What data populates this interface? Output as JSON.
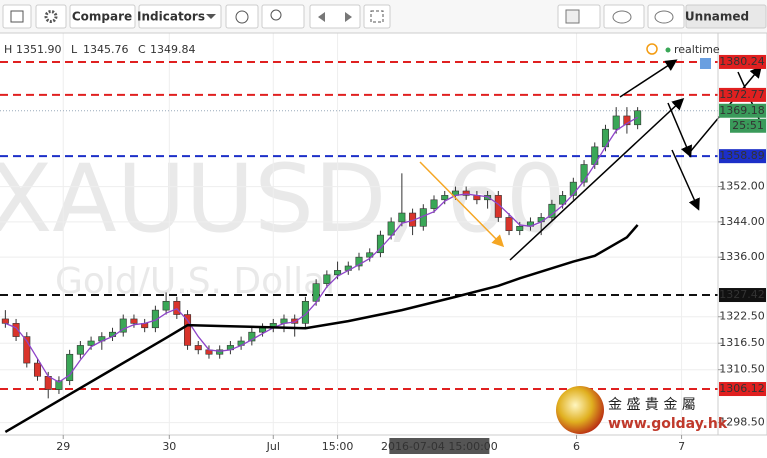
{
  "toolbar": {
    "compare": "Compare",
    "indicators": "Indicators",
    "layout_name": "Unnamed"
  },
  "header": {
    "items": [
      {
        "key": "H",
        "text": "1351.90"
      },
      {
        "key": "L",
        "text": "1345.76"
      },
      {
        "key": "C",
        "text": "1349.84"
      }
    ],
    "status": "realtime"
  },
  "logo": {
    "name": "金 盛 貴 金 屬",
    "url": "www.golday.hk"
  },
  "chart_data": {
    "type": "candlestick",
    "symbol": "XAUUSD, 60",
    "description": "Gold/U.S. Dollar",
    "up_color": "#3aa757",
    "down_color": "#d9342b",
    "xlim": [
      -0.5,
      66.5
    ],
    "xticks": [
      {
        "value": 5.4,
        "label": "29"
      },
      {
        "value": 15.3,
        "label": "30"
      },
      {
        "value": 25,
        "label": "Jul"
      },
      {
        "value": 31,
        "label": "15:00"
      },
      {
        "value": 53.3,
        "label": "6"
      },
      {
        "value": 63.1,
        "label": "7"
      }
    ],
    "crosshair": {
      "value": 40.5,
      "label": "2016-07-04 15:00:00"
    },
    "ylim": [
      1295.7,
      1386.8
    ],
    "yticks": [
      {
        "value": 1352,
        "label": "1352.00"
      },
      {
        "value": 1344,
        "label": "1344.00"
      },
      {
        "value": 1336,
        "label": "1336.00"
      },
      {
        "value": 1322.5,
        "label": "1322.50"
      },
      {
        "value": 1316.5,
        "label": "1316.50"
      },
      {
        "value": 1310.5,
        "label": "1310.50"
      },
      {
        "value": 1298.5,
        "label": "1298.50"
      }
    ],
    "grid": true,
    "candles": [
      [
        1322,
        1324,
        1320,
        1321
      ],
      [
        1321,
        1322,
        1317,
        1318
      ],
      [
        1318,
        1319,
        1311,
        1312
      ],
      [
        1312,
        1313,
        1308,
        1309
      ],
      [
        1309,
        1310,
        1304,
        1306
      ],
      [
        1306,
        1309,
        1305,
        1308
      ],
      [
        1308,
        1315,
        1307,
        1314
      ],
      [
        1314,
        1317,
        1313,
        1316
      ],
      [
        1316,
        1318,
        1315,
        1317
      ],
      [
        1317,
        1319,
        1315,
        1318
      ],
      [
        1318,
        1320,
        1317,
        1319
      ],
      [
        1319,
        1323,
        1318,
        1322
      ],
      [
        1322,
        1323,
        1320,
        1321
      ],
      [
        1321,
        1322,
        1319,
        1320
      ],
      [
        1320,
        1325,
        1319,
        1324
      ],
      [
        1324,
        1328,
        1323,
        1326
      ],
      [
        1326,
        1327,
        1322,
        1323
      ],
      [
        1323,
        1324,
        1315,
        1316
      ],
      [
        1316,
        1317,
        1314,
        1315
      ],
      [
        1315,
        1316,
        1313,
        1314
      ],
      [
        1314,
        1316,
        1313,
        1315
      ],
      [
        1315,
        1317,
        1314,
        1316
      ],
      [
        1316,
        1318,
        1315,
        1317
      ],
      [
        1317,
        1320,
        1316,
        1319
      ],
      [
        1319,
        1321,
        1318,
        1320
      ],
      [
        1320,
        1322,
        1319,
        1321
      ],
      [
        1321,
        1323,
        1319,
        1322
      ],
      [
        1322,
        1323,
        1318,
        1321
      ],
      [
        1321,
        1327,
        1320,
        1326
      ],
      [
        1326,
        1331,
        1325,
        1330
      ],
      [
        1330,
        1333,
        1329,
        1332
      ],
      [
        1332,
        1335,
        1331,
        1333
      ],
      [
        1333,
        1335,
        1332,
        1334
      ],
      [
        1334,
        1337,
        1333,
        1336
      ],
      [
        1336,
        1338,
        1335,
        1337
      ],
      [
        1337,
        1342,
        1336,
        1341
      ],
      [
        1341,
        1345,
        1340,
        1344
      ],
      [
        1344,
        1355,
        1343,
        1346
      ],
      [
        1346,
        1347,
        1341,
        1343
      ],
      [
        1343,
        1348,
        1342,
        1347
      ],
      [
        1347,
        1350,
        1346,
        1349
      ],
      [
        1349,
        1351,
        1348,
        1350
      ],
      [
        1350,
        1352,
        1349,
        1351
      ],
      [
        1351,
        1352,
        1349,
        1350
      ],
      [
        1350,
        1351,
        1348,
        1349
      ],
      [
        1349,
        1351,
        1347,
        1350
      ],
      [
        1350,
        1351,
        1344,
        1345
      ],
      [
        1345,
        1346,
        1341,
        1342
      ],
      [
        1342,
        1344,
        1341,
        1343
      ],
      [
        1343,
        1345,
        1342,
        1344
      ],
      [
        1344,
        1346,
        1341,
        1345
      ],
      [
        1345,
        1349,
        1344,
        1348
      ],
      [
        1348,
        1351,
        1347,
        1350
      ],
      [
        1350,
        1354,
        1349,
        1353
      ],
      [
        1353,
        1358,
        1352,
        1357
      ],
      [
        1357,
        1362,
        1356,
        1361
      ],
      [
        1361,
        1366,
        1360,
        1365
      ],
      [
        1365,
        1370,
        1364,
        1368
      ],
      [
        1368,
        1370,
        1364,
        1366
      ],
      [
        1366,
        1370,
        1365,
        1369.18
      ]
    ],
    "series": [
      {
        "color": "#8e44c9",
        "values": [
          1321,
          1320,
          1317,
          1313,
          1309,
          1307.7,
          1309.3,
          1312.7,
          1315.7,
          1317,
          1318,
          1319.7,
          1320.7,
          1321,
          1321.7,
          1323.3,
          1324.3,
          1321.7,
          1318,
          1315,
          1314.7,
          1315,
          1316,
          1317.3,
          1318.7,
          1320,
          1321,
          1321.3,
          1323,
          1325.7,
          1329.3,
          1331.7,
          1333,
          1334.3,
          1335.7,
          1338,
          1340.7,
          1343.7,
          1344.3,
          1345.3,
          1346.3,
          1348.7,
          1350,
          1350.3,
          1350,
          1349.7,
          1348,
          1345.7,
          1343.3,
          1343,
          1344,
          1345.7,
          1347.7,
          1350.3,
          1353.3,
          1357,
          1361,
          1364.7,
          1366.3,
          1367.7
        ]
      },
      {
        "color": "#000000",
        "x": [
          0,
          5,
          10,
          15,
          17,
          20,
          25,
          28,
          32,
          37,
          42,
          46,
          48,
          53,
          55,
          58,
          59
        ],
        "values": [
          1296.4,
          1303.5,
          1310.6,
          1317.7,
          1320.6,
          1320.4,
          1320.1,
          1319.9,
          1321.5,
          1324,
          1327,
          1329.5,
          1331.2,
          1335,
          1336.3,
          1340.5,
          1343.3
        ]
      }
    ],
    "price_lines": [
      {
        "value": 1380.24,
        "color": "#e02020",
        "dashed": true
      },
      {
        "value": 1372.77,
        "color": "#e02020",
        "dashed": true
      },
      {
        "value": 1369.18,
        "color": "#3a9a5a",
        "dashed": false,
        "countdown": "25:51"
      },
      {
        "value": 1358.89,
        "color": "#1c2fc8",
        "dashed": true
      },
      {
        "value": 1327.42,
        "color": "#111111",
        "dashed": true
      },
      {
        "value": 1306.12,
        "color": "#e02020",
        "dashed": true
      }
    ]
  }
}
